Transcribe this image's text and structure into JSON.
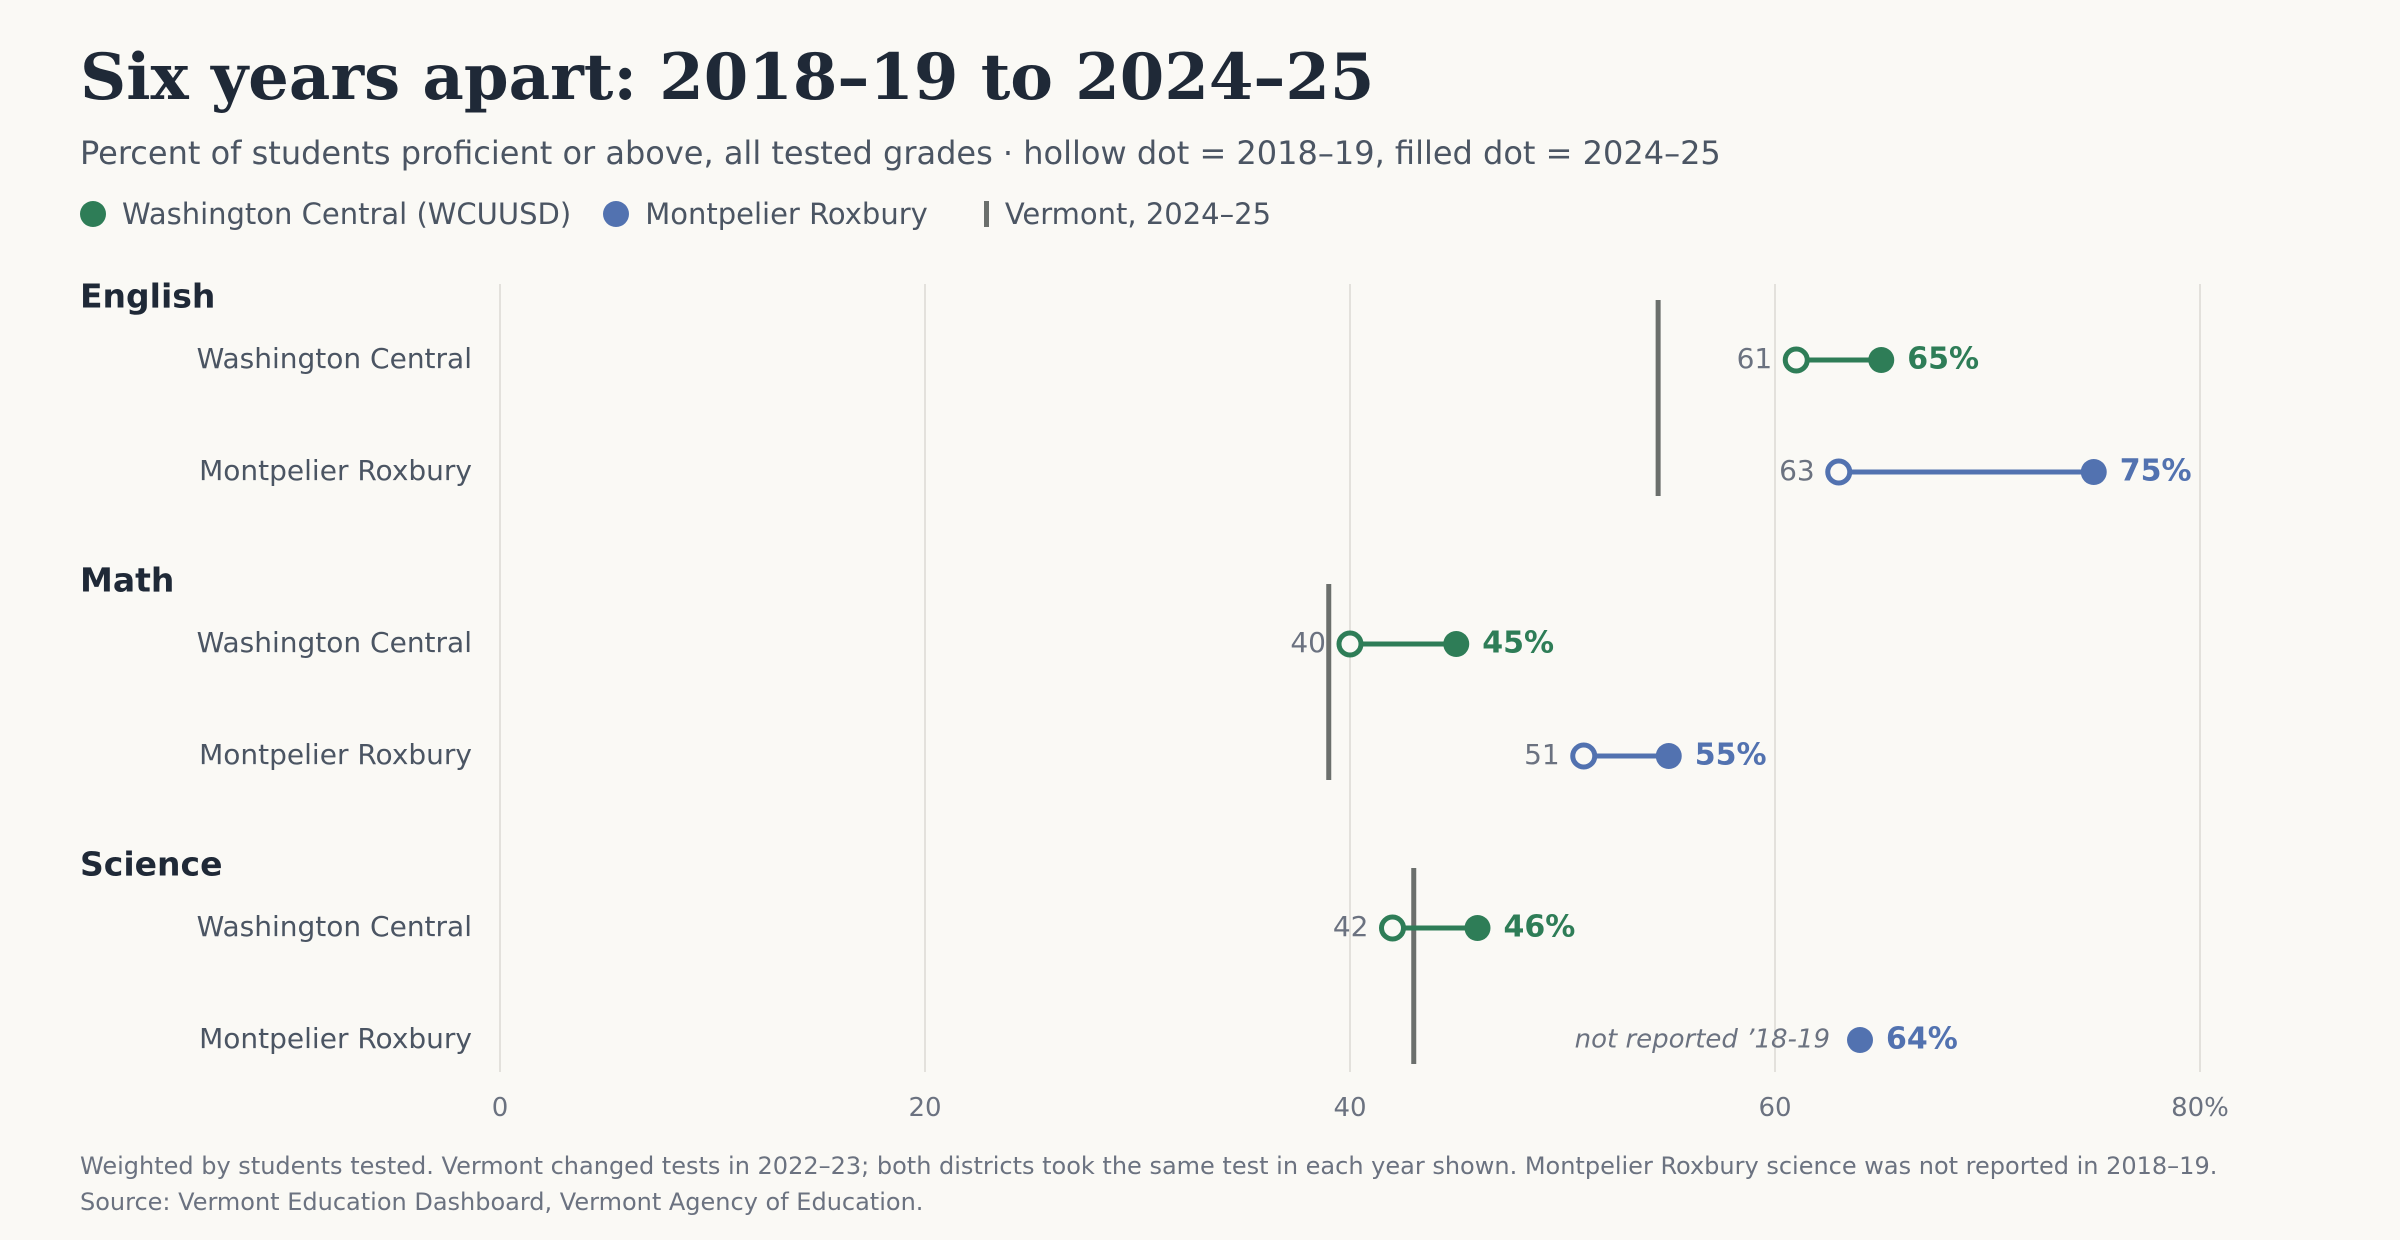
{
  "title": "Six years apart: 2018–19 to 2024–25",
  "subtitle": "Percent of students proficient or above, all tested grades · hollow dot = 2018–19, filled dot = 2024–25",
  "legend": {
    "washington_central": "Washington Central (WCUUSD)",
    "montpelier_roxbury": "Montpelier Roxbury",
    "vermont": "Vermont, 2024–25"
  },
  "colors": {
    "washington_central": "#2e7d57",
    "montpelier_roxbury": "#5272b0",
    "vermont": "#6b6f6c",
    "grid": "#e3e1dc",
    "group_label": "#1f2937",
    "row_label": "#4b5563",
    "value_2018": "#6b7280"
  },
  "chart_data": {
    "type": "dumbbell",
    "xlim": [
      0,
      80
    ],
    "x_ticks": [
      "0",
      "20",
      "40",
      "60",
      "80%"
    ],
    "grid": true,
    "groups": [
      {
        "name": "English",
        "vermont_2024_25": 54.5,
        "rows": [
          {
            "label": "Washington Central",
            "district": "washington_central",
            "v2018_19": 61,
            "v2024_25": 65,
            "label_2018_19": "61",
            "label_2024_25": "65%"
          },
          {
            "label": "Montpelier Roxbury",
            "district": "montpelier_roxbury",
            "v2018_19": 63,
            "v2024_25": 75,
            "label_2018_19": "63",
            "label_2024_25": "75%"
          }
        ]
      },
      {
        "name": "Math",
        "vermont_2024_25": 39,
        "rows": [
          {
            "label": "Washington Central",
            "district": "washington_central",
            "v2018_19": 40,
            "v2024_25": 45,
            "label_2018_19": "40",
            "label_2024_25": "45%"
          },
          {
            "label": "Montpelier Roxbury",
            "district": "montpelier_roxbury",
            "v2018_19": 51,
            "v2024_25": 55,
            "label_2018_19": "51",
            "label_2024_25": "55%"
          }
        ]
      },
      {
        "name": "Science",
        "vermont_2024_25": 43,
        "rows": [
          {
            "label": "Washington Central",
            "district": "washington_central",
            "v2018_19": 42,
            "v2024_25": 46,
            "label_2018_19": "42",
            "label_2024_25": "46%"
          },
          {
            "label": "Montpelier Roxbury",
            "district": "montpelier_roxbury",
            "v2018_19": null,
            "v2024_25": 64,
            "label_2018_19": "not reported ’18-19",
            "label_2024_25": "64%"
          }
        ]
      }
    ]
  },
  "footer": {
    "note": "Weighted by students tested. Vermont changed tests in 2022–23; both districts took the same test in each year shown. Montpelier Roxbury science was not reported in 2018–19.",
    "source": "Source: Vermont Education Dashboard, Vermont Agency of Education."
  }
}
